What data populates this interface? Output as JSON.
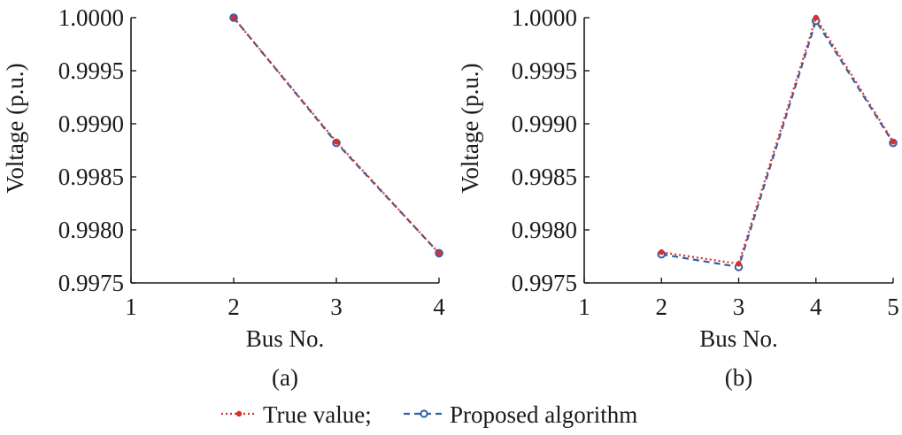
{
  "chart_data": [
    {
      "type": "line",
      "panel_label": "(a)",
      "xlabel": "Bus No.",
      "ylabel": "Voltage (p.u.)",
      "xlim": [
        1,
        4
      ],
      "ylim": [
        0.9975,
        1.0
      ],
      "x_ticks": [
        "1",
        "2",
        "3",
        "4"
      ],
      "y_ticks": [
        "0.9975",
        "0.9980",
        "0.9985",
        "0.9990",
        "0.9995",
        "1.0000"
      ],
      "x": [
        2,
        3,
        4
      ],
      "series": [
        {
          "name": "True value",
          "values": [
            1.0,
            0.99883,
            0.99778
          ],
          "color": "#d9302c",
          "style": "dotted",
          "marker": "dot"
        },
        {
          "name": "Proposed algorithm",
          "values": [
            1.0,
            0.99882,
            0.99778
          ],
          "color": "#2f5fa8",
          "style": "dashed",
          "marker": "circle"
        }
      ]
    },
    {
      "type": "line",
      "panel_label": "(b)",
      "xlabel": "Bus No.",
      "ylabel": "Voltage (p.u.)",
      "xlim": [
        1,
        5
      ],
      "ylim": [
        0.9975,
        1.0
      ],
      "x_ticks": [
        "1",
        "2",
        "3",
        "4",
        "5"
      ],
      "y_ticks": [
        "0.9975",
        "0.9980",
        "0.9985",
        "0.9990",
        "0.9995",
        "1.0000"
      ],
      "x": [
        2,
        3,
        4,
        5
      ],
      "series": [
        {
          "name": "True value",
          "values": [
            0.99779,
            0.99768,
            1.0,
            0.99883
          ],
          "color": "#d9302c",
          "style": "dotted",
          "marker": "dot"
        },
        {
          "name": "Proposed algorithm",
          "values": [
            0.99777,
            0.99765,
            0.99997,
            0.99882
          ],
          "color": "#2f5fa8",
          "style": "dashed",
          "marker": "circle"
        }
      ]
    }
  ],
  "legend": {
    "items": [
      {
        "label": "True value;",
        "color": "#d9302c",
        "style": "dotted",
        "marker": "dot"
      },
      {
        "label": "Proposed algorithm",
        "color": "#2f5fa8",
        "style": "dashed",
        "marker": "circle"
      }
    ]
  }
}
